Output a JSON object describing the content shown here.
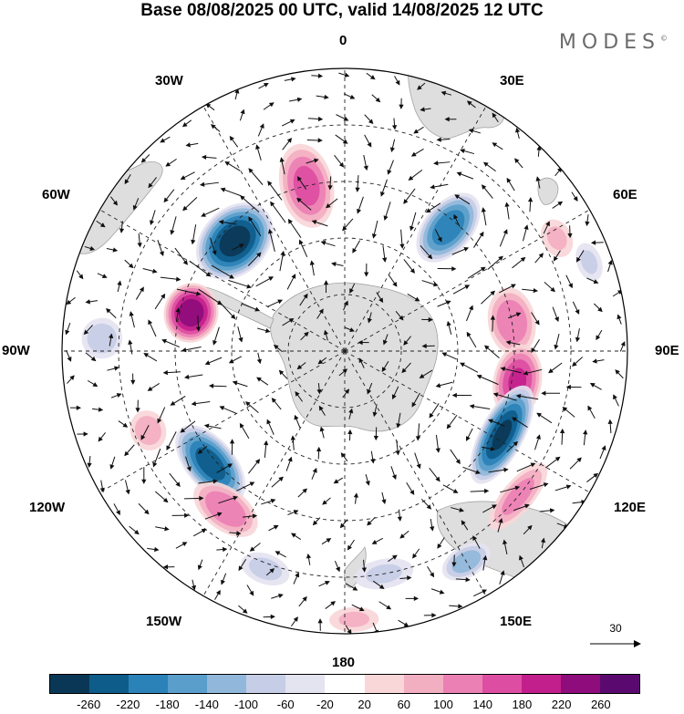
{
  "title": "Base 08/08/2025 00 UTC, valid 14/08/2025 12 UTC",
  "brand": "MODES",
  "brand_mark": "©",
  "longitude_labels": {
    "lon_0": "0",
    "lon_30e": "30E",
    "lon_60e": "60E",
    "lon_90e": "90E",
    "lon_120e": "120E",
    "lon_150e": "150E",
    "lon_180": "180",
    "lon_150w": "150W",
    "lon_120w": "120W",
    "lon_90w": "90W",
    "lon_60w": "60W",
    "lon_30w": "30W"
  },
  "reference_vector": {
    "label": "30"
  },
  "colorbar": {
    "colors": [
      "#0b3756",
      "#0e5c8a",
      "#2b82b8",
      "#5a9ecb",
      "#91b8da",
      "#c6cde6",
      "#e4e3f0",
      "#ffffff",
      "#f9d6d8",
      "#f3afc2",
      "#eb80b4",
      "#dd4ea2",
      "#c31f8c",
      "#8e0c7c",
      "#5a0a6e"
    ],
    "tick_labels": [
      "-260",
      "-220",
      "-180",
      "-140",
      "-100",
      "-60",
      "-20",
      "20",
      "60",
      "100",
      "140",
      "180",
      "220",
      "260"
    ]
  },
  "field": {
    "anomalies": [
      {
        "lon": -45,
        "rlat": 0.55,
        "value": -280,
        "sx": 0.16,
        "sy": 0.12
      },
      {
        "lon": -13,
        "rlat": 0.6,
        "value": 150,
        "sx": 0.1,
        "sy": 0.16
      },
      {
        "lon": 40,
        "rlat": 0.57,
        "value": -210,
        "sx": 0.09,
        "sy": 0.15
      },
      {
        "lon": 80,
        "rlat": 0.6,
        "value": 130,
        "sx": 0.13,
        "sy": 0.09
      },
      {
        "lon": 100,
        "rlat": 0.62,
        "value": 180,
        "sx": 0.14,
        "sy": 0.09
      },
      {
        "lon": 118,
        "rlat": 0.63,
        "value": -260,
        "sx": 0.2,
        "sy": 0.08
      },
      {
        "lon": 130,
        "rlat": 0.8,
        "value": 110,
        "sx": 0.16,
        "sy": 0.06
      },
      {
        "lon": 150,
        "rlat": 0.86,
        "value": -120,
        "sx": 0.1,
        "sy": 0.06
      },
      {
        "lon": -130,
        "rlat": 0.62,
        "value": -240,
        "sx": 0.17,
        "sy": 0.09
      },
      {
        "lon": -143,
        "rlat": 0.7,
        "value": 130,
        "sx": 0.14,
        "sy": 0.08
      },
      {
        "lon": -76,
        "rlat": 0.56,
        "value": 250,
        "sx": 0.11,
        "sy": 0.1
      },
      {
        "lon": -87,
        "rlat": 0.86,
        "value": -80,
        "sx": 0.08,
        "sy": 0.08
      },
      {
        "lon": -112,
        "rlat": 0.75,
        "value": 80,
        "sx": 0.08,
        "sy": 0.07
      },
      {
        "lon": -160,
        "rlat": 0.82,
        "value": -70,
        "sx": 0.1,
        "sy": 0.06
      },
      {
        "lon": 170,
        "rlat": 0.8,
        "value": -60,
        "sx": 0.12,
        "sy": 0.06
      },
      {
        "lon": 178,
        "rlat": 0.95,
        "value": 60,
        "sx": 0.1,
        "sy": 0.05
      },
      {
        "lon": 62,
        "rlat": 0.85,
        "value": 60,
        "sx": 0.08,
        "sy": 0.06
      },
      {
        "lon": 70,
        "rlat": 0.92,
        "value": -60,
        "sx": 0.08,
        "sy": 0.05
      }
    ]
  }
}
